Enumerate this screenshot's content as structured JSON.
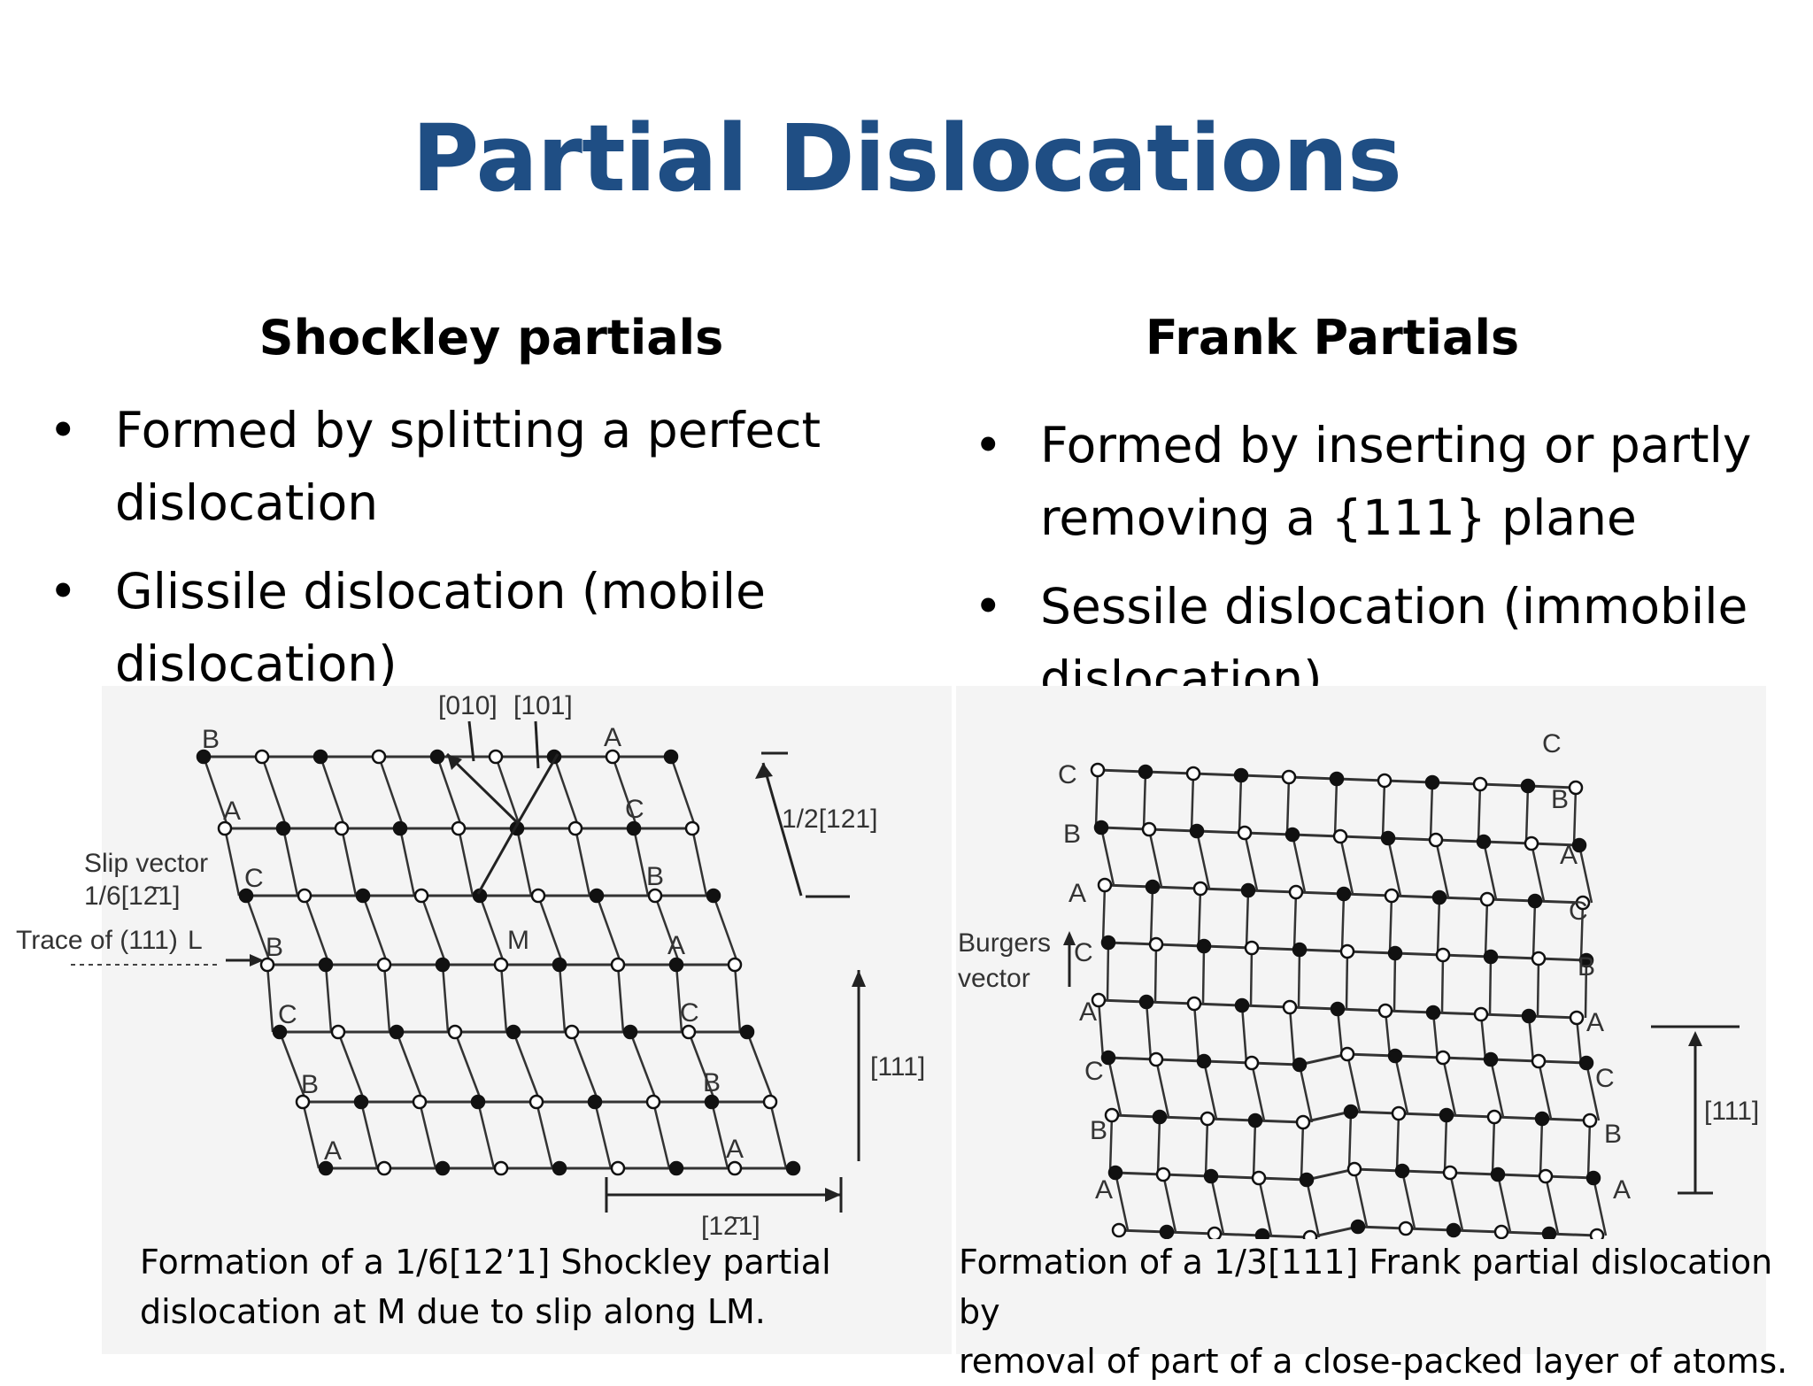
{
  "title": "Partial Dislocations",
  "left": {
    "heading": "Shockley partials",
    "bullets": [
      "Formed by splitting a perfect dislocation",
      "Glissile dislocation (mobile dislocation)"
    ],
    "figure": {
      "labels": {
        "dir010": "[010]",
        "dir101": "[101]",
        "dir121": "1/2[121]",
        "dir111": "[111]",
        "dir1m21": "[12̄1]",
        "slip1": "Slip vector",
        "slip2": "1/6[12̄1]",
        "trace": "Trace of (111)",
        "L": "L",
        "M": "M"
      },
      "layers_left": [
        "B",
        "A",
        "C",
        "B",
        "C",
        "B",
        "A"
      ],
      "layers_right": [
        "A",
        "C",
        "B",
        "A",
        "C",
        "B",
        "A"
      ]
    },
    "caption": [
      "Formation of a 1/6[12’1] Shockley partial",
      "dislocation at M due to slip along LM."
    ]
  },
  "right": {
    "heading": "Frank Partials",
    "bullets": [
      "Formed by inserting or partly removing a {111} plane",
      "Sessile dislocation (immobile dislocation)"
    ],
    "figure": {
      "labels": {
        "burgers1": "Burgers",
        "burgers2": "vector",
        "dir111": "[111]"
      },
      "layers_left": [
        "C",
        "B",
        "A",
        "C",
        "A",
        "C",
        "B",
        "A"
      ],
      "layers_right": [
        "C",
        "B",
        "A",
        "C",
        "B",
        "A",
        "C",
        "B",
        "A"
      ]
    },
    "caption": [
      "Formation of a 1/3[111] Frank partial dislocation by",
      "removal of part of a close-packed layer of atoms."
    ]
  }
}
